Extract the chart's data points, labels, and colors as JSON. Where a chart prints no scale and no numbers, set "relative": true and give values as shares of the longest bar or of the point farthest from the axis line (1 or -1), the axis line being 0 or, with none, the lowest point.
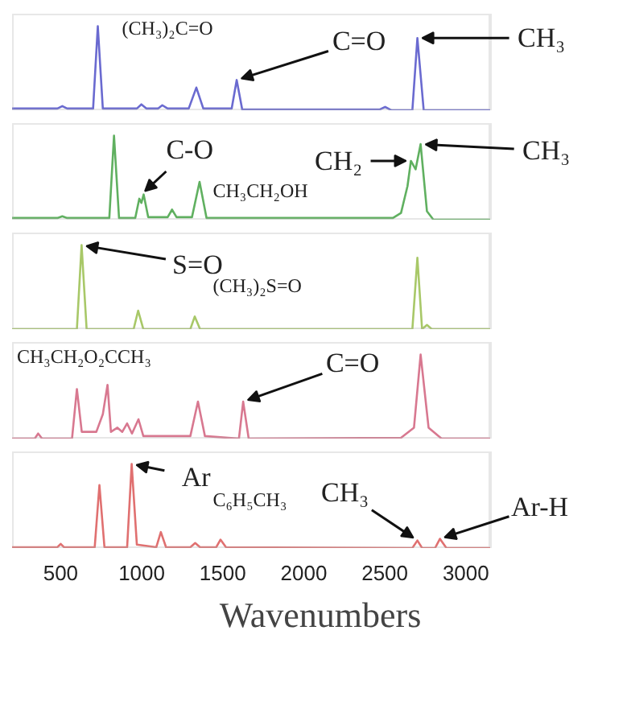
{
  "chart_data": [
    {
      "type": "line",
      "relative": true,
      "title": "(CH₃)₂C=O",
      "xlim": [
        200,
        3150
      ],
      "tick_labels": false,
      "grid": false,
      "series": [
        {
          "color": "#6a6ad0",
          "x": [
            200,
            480,
            510,
            540,
            700,
            729,
            760,
            970,
            998,
            1030,
            1100,
            1127,
            1160,
            1290,
            1337,
            1380,
            1555,
            1586,
            1620,
            2470,
            2502,
            2540,
            2670,
            2701,
            2740,
            3150
          ],
          "values": [
            0.02,
            0.02,
            0.05,
            0.02,
            0.02,
            1.0,
            0.02,
            0.02,
            0.07,
            0.02,
            0.02,
            0.06,
            0.02,
            0.02,
            0.27,
            0.02,
            0.02,
            0.36,
            0.01,
            0.01,
            0.04,
            0.0,
            0.0,
            0.86,
            0.0,
            0.0
          ]
        }
      ],
      "annotations": [
        {
          "text": "C=O",
          "x": 1586,
          "y": 0.36
        },
        {
          "text": "CH₃",
          "x": 2701,
          "y": 0.86
        }
      ]
    },
    {
      "type": "line",
      "relative": true,
      "title": "CH₃CH₂OH",
      "xlim": [
        200,
        3150
      ],
      "tick_labels": false,
      "grid": false,
      "series": [
        {
          "color": "#60b060",
          "x": [
            200,
            480,
            510,
            540,
            800,
            829,
            860,
            960,
            985,
            998,
            1012,
            1040,
            1160,
            1187,
            1215,
            1310,
            1357,
            1400,
            2550,
            2600,
            2640,
            2661,
            2690,
            2721,
            2760,
            2800,
            3150
          ],
          "values": [
            0.02,
            0.02,
            0.04,
            0.02,
            0.02,
            1.0,
            0.02,
            0.02,
            0.25,
            0.2,
            0.3,
            0.03,
            0.03,
            0.12,
            0.03,
            0.03,
            0.45,
            0.02,
            0.02,
            0.08,
            0.4,
            0.7,
            0.6,
            0.9,
            0.1,
            0.0,
            0.0
          ]
        }
      ],
      "annotations": [
        {
          "text": "C-O",
          "x": 998,
          "y": 0.3
        },
        {
          "text": "CH₂",
          "x": 2661,
          "y": 0.7
        },
        {
          "text": "CH₃",
          "x": 2721,
          "y": 0.9
        }
      ]
    },
    {
      "type": "line",
      "relative": true,
      "title": "(CH₃)₂S=O",
      "xlim": [
        200,
        3150
      ],
      "tick_labels": false,
      "grid": false,
      "series": [
        {
          "color": "#a8c868",
          "x": [
            200,
            600,
            629,
            660,
            950,
            978,
            1010,
            1300,
            1327,
            1360,
            2670,
            2701,
            2730,
            2760,
            2790,
            3150
          ],
          "values": [
            0.0,
            0.0,
            1.0,
            0.0,
            0.0,
            0.22,
            0.0,
            0.0,
            0.15,
            0.0,
            0.0,
            0.85,
            0.0,
            0.05,
            0.0,
            0.0
          ]
        }
      ],
      "annotations": [
        {
          "text": "S=O",
          "x": 629,
          "y": 1.0
        }
      ]
    },
    {
      "type": "line",
      "relative": true,
      "title": "CH₃CH₂O₂CCH₃",
      "xlim": [
        200,
        3150
      ],
      "tick_labels": false,
      "grid": false,
      "series": [
        {
          "color": "#d87890",
          "x": [
            200,
            340,
            361,
            385,
            570,
            600,
            630,
            720,
            760,
            789,
            810,
            850,
            880,
            910,
            940,
            980,
            1010,
            1050,
            1300,
            1347,
            1390,
            1600,
            1626,
            1660,
            2600,
            2680,
            2721,
            2770,
            2850,
            3150
          ],
          "values": [
            0.0,
            0.0,
            0.06,
            0.0,
            0.0,
            0.59,
            0.08,
            0.08,
            0.29,
            0.64,
            0.08,
            0.13,
            0.08,
            0.18,
            0.06,
            0.23,
            0.03,
            0.03,
            0.03,
            0.44,
            0.03,
            0.0,
            0.44,
            0.0,
            0.01,
            0.13,
            1.0,
            0.13,
            0.0,
            0.0
          ]
        }
      ],
      "annotations": [
        {
          "text": "C=O",
          "x": 1626,
          "y": 0.44
        }
      ]
    },
    {
      "type": "line",
      "relative": true,
      "title": "C₆H₅CH₃",
      "xlabel": "Wavenumbers",
      "xlim": [
        200,
        3150
      ],
      "xticks": [
        500,
        1000,
        1500,
        2000,
        2500,
        3000
      ],
      "tick_labels": "x",
      "grid": false,
      "series": [
        {
          "color": "#e07070",
          "x": [
            200,
            480,
            500,
            520,
            710,
            739,
            770,
            910,
            938,
            970,
            1090,
            1118,
            1150,
            1300,
            1330,
            1360,
            1460,
            1486,
            1520,
            2670,
            2701,
            2730,
            2810,
            2840,
            2880,
            3150
          ],
          "values": [
            0.01,
            0.01,
            0.05,
            0.01,
            0.01,
            0.75,
            0.01,
            0.01,
            1.0,
            0.04,
            0.01,
            0.19,
            0.01,
            0.01,
            0.06,
            0.01,
            0.01,
            0.1,
            0.01,
            0.0,
            0.09,
            0.0,
            0.0,
            0.11,
            0.0,
            0.0
          ]
        }
      ],
      "annotations": [
        {
          "text": "Ar",
          "x": 938,
          "y": 1.0
        },
        {
          "text": "CH₃",
          "x": 2701,
          "y": 0.09
        },
        {
          "text": "Ar-H",
          "x": 2840,
          "y": 0.11
        }
      ]
    }
  ]
}
